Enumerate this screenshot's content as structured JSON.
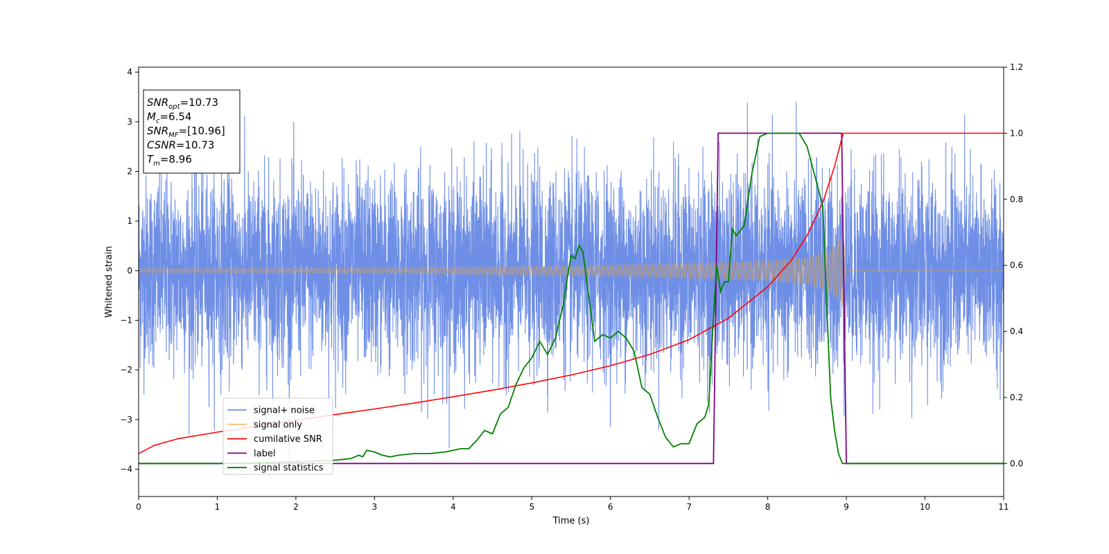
{
  "chart_data": {
    "type": "line",
    "xlabel": "Time (s)",
    "ylabel": "Whitened strain",
    "xlim": [
      0,
      11
    ],
    "ylim_left": [
      -4.55,
      4.1
    ],
    "ylim_right": [
      -0.1,
      1.2
    ],
    "x_ticks": [
      "0",
      "1",
      "2",
      "3",
      "4",
      "5",
      "6",
      "7",
      "8",
      "9",
      "10",
      "11"
    ],
    "y_left_ticks": [
      "4",
      "3",
      "2",
      "1",
      "0",
      "−1",
      "−2",
      "−3",
      "−4"
    ],
    "y_right_ticks": [
      "1.2",
      "1.0",
      "0.8",
      "0.6",
      "0.4",
      "0.2",
      "0.0"
    ],
    "grid": false,
    "legend_position": "lower-left",
    "info_box": [
      {
        "base": "SNR",
        "sub": "opt",
        "value": "=10.73"
      },
      {
        "base": "M",
        "sub": "c",
        "value": "=6.54"
      },
      {
        "base": "SNR",
        "sub": "MF",
        "value": "=[10.96]"
      },
      {
        "base": "CSNR",
        "sub": "",
        "value": "=10.73"
      },
      {
        "base": "T",
        "sub": "m",
        "value": "=8.96"
      }
    ],
    "series": [
      {
        "name": "signal+ noise",
        "axis": "left",
        "color": "#6f8fe6",
        "style": "noise",
        "noise_sigma": 1.0,
        "time_range": [
          0,
          11
        ]
      },
      {
        "name": "signal only",
        "axis": "left",
        "color": "#f5c36e",
        "style": "chirp",
        "envelope": {
          "x": [
            0,
            2,
            4,
            6,
            7,
            8,
            8.5,
            8.8,
            8.9,
            8.96,
            9.0,
            11
          ],
          "y": [
            0.04,
            0.05,
            0.07,
            0.11,
            0.15,
            0.2,
            0.27,
            0.42,
            0.62,
            0.75,
            0,
            0
          ]
        }
      },
      {
        "name": "cumilative SNR",
        "axis": "right",
        "color": "#ff0000",
        "x": [
          0,
          0.2,
          0.5,
          1,
          1.5,
          2,
          2.5,
          3,
          3.5,
          4,
          4.5,
          5,
          5.5,
          6,
          6.5,
          7,
          7.5,
          8,
          8.3,
          8.5,
          8.7,
          8.85,
          8.96,
          9.0,
          11
        ],
        "y": [
          0.03,
          0.055,
          0.075,
          0.095,
          0.113,
          0.13,
          0.148,
          0.165,
          0.183,
          0.202,
          0.222,
          0.244,
          0.268,
          0.296,
          0.33,
          0.375,
          0.44,
          0.535,
          0.615,
          0.69,
          0.79,
          0.9,
          1.0,
          1.0,
          1.0
        ]
      },
      {
        "name": "label",
        "axis": "right",
        "color": "#800080",
        "x": [
          0,
          7.31,
          7.37,
          8.94,
          9.0,
          11
        ],
        "y": [
          0,
          0,
          1,
          1,
          0,
          0
        ]
      },
      {
        "name": "signal statistics",
        "axis": "right",
        "color": "#008000",
        "x": [
          0,
          1,
          2,
          2.5,
          2.7,
          2.8,
          2.85,
          2.9,
          3.0,
          3.1,
          3.2,
          3.3,
          3.5,
          3.7,
          3.9,
          4.1,
          4.2,
          4.3,
          4.4,
          4.5,
          4.6,
          4.7,
          4.8,
          4.9,
          5.0,
          5.1,
          5.2,
          5.3,
          5.4,
          5.45,
          5.5,
          5.55,
          5.6,
          5.65,
          5.7,
          5.8,
          5.9,
          6.0,
          6.1,
          6.2,
          6.3,
          6.4,
          6.5,
          6.6,
          6.7,
          6.8,
          6.9,
          7.0,
          7.1,
          7.2,
          7.25,
          7.3,
          7.35,
          7.4,
          7.45,
          7.5,
          7.55,
          7.6,
          7.7,
          7.8,
          7.9,
          8.0,
          8.1,
          8.2,
          8.3,
          8.4,
          8.5,
          8.6,
          8.7,
          8.75,
          8.8,
          8.85,
          8.9,
          8.95,
          9.0,
          11
        ],
        "y": [
          0.0,
          0.0,
          0.005,
          0.01,
          0.015,
          0.025,
          0.02,
          0.04,
          0.035,
          0.025,
          0.02,
          0.025,
          0.03,
          0.03,
          0.035,
          0.045,
          0.045,
          0.07,
          0.1,
          0.09,
          0.15,
          0.17,
          0.24,
          0.29,
          0.32,
          0.37,
          0.33,
          0.38,
          0.48,
          0.56,
          0.63,
          0.62,
          0.66,
          0.64,
          0.55,
          0.37,
          0.39,
          0.38,
          0.4,
          0.38,
          0.34,
          0.23,
          0.21,
          0.14,
          0.08,
          0.05,
          0.06,
          0.06,
          0.12,
          0.14,
          0.18,
          0.4,
          0.6,
          0.52,
          0.55,
          0.55,
          0.71,
          0.69,
          0.72,
          0.88,
          0.99,
          1.0,
          1.0,
          1.0,
          1.0,
          1.0,
          0.96,
          0.87,
          0.78,
          0.48,
          0.2,
          0.1,
          0.03,
          0.0,
          0.0,
          0.0
        ]
      }
    ]
  }
}
